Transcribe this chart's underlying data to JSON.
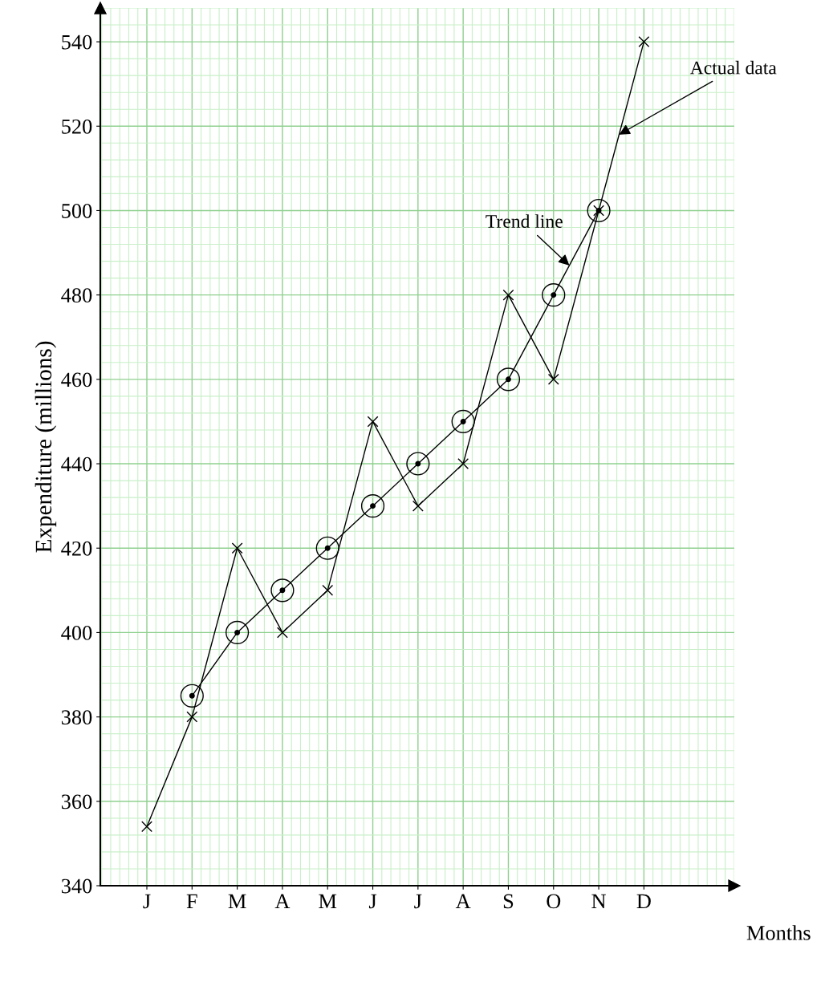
{
  "chart_data": {
    "type": "line",
    "xlabel": "Months",
    "ylabel": "Expenditure (millions)",
    "categories": [
      "J",
      "F",
      "M",
      "A",
      "M",
      "J",
      "J",
      "A",
      "S",
      "O",
      "N",
      "D"
    ],
    "series": [
      {
        "name": "Actual data",
        "color": "#000000",
        "marker": "cross",
        "values": [
          354,
          380,
          420,
          400,
          410,
          450,
          430,
          440,
          480,
          460,
          500,
          540
        ]
      },
      {
        "name": "Trend line",
        "color": "#000000",
        "marker": "circle",
        "values": [
          null,
          385,
          400,
          410,
          420,
          430,
          440,
          450,
          460,
          480,
          500,
          null
        ]
      }
    ],
    "ylim": [
      340,
      548
    ],
    "yticks": [
      340,
      360,
      380,
      400,
      420,
      440,
      460,
      480,
      500,
      520,
      540
    ],
    "grid": true,
    "line_style": "solid"
  }
}
